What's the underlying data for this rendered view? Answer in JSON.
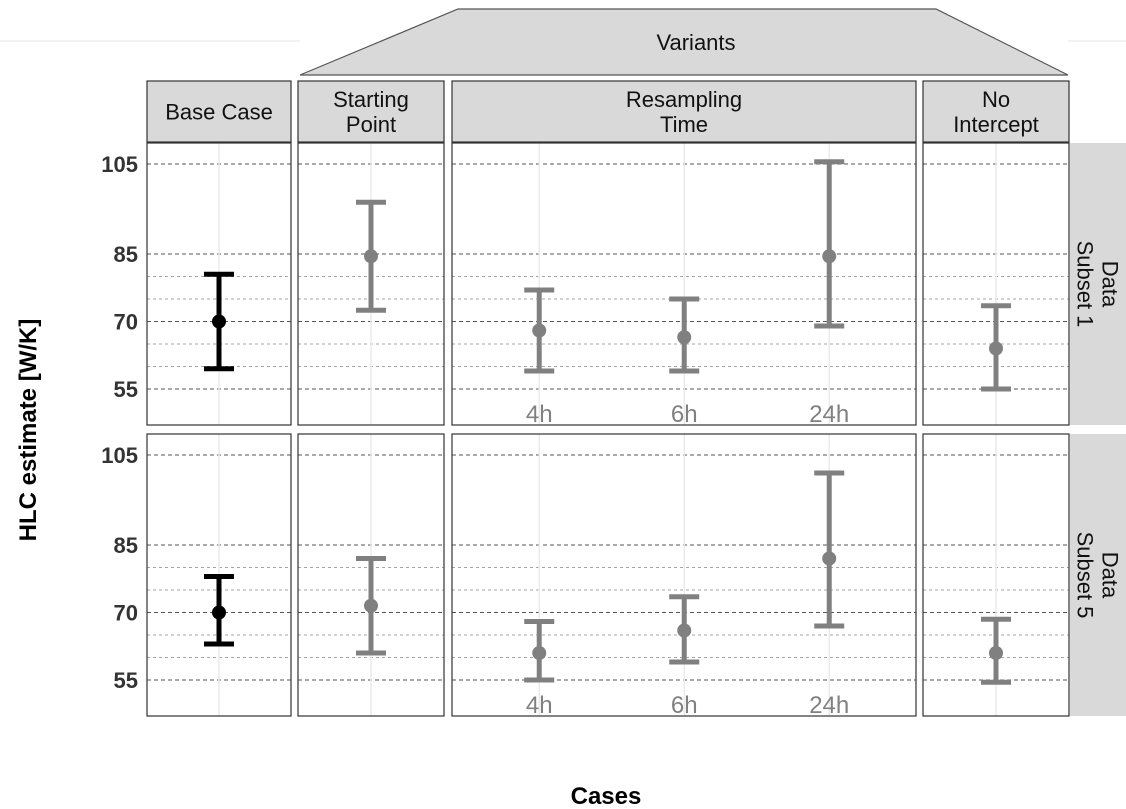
{
  "chart_data": {
    "type": "errorbar",
    "title": "",
    "xlabel": "Cases",
    "ylabel": "HLC estimate [W/K]",
    "y_ticks": [
      55,
      70,
      85,
      105
    ],
    "variants_label": "Variants",
    "columns": [
      {
        "label": "Base Case",
        "label_lines": [
          "Base Case"
        ],
        "points": [
          ""
        ]
      },
      {
        "label": "Starting Point",
        "label_lines": [
          "Starting",
          "Point"
        ],
        "points": [
          ""
        ]
      },
      {
        "label": "Resampling Time",
        "label_lines": [
          "Resampling",
          "Time"
        ],
        "points": [
          "4h",
          "6h",
          "24h"
        ]
      },
      {
        "label": "No Intercept",
        "label_lines": [
          "No",
          "Intercept"
        ],
        "points": [
          ""
        ]
      }
    ],
    "rows": [
      {
        "label": "Data Subset 1",
        "label_lines": [
          "Data",
          "Subset 1"
        ],
        "values": [
          [
            {
              "est": 70,
              "lo": 59.5,
              "hi": 80.5
            }
          ],
          [
            {
              "est": 84.5,
              "lo": 72.5,
              "hi": 96.5
            }
          ],
          [
            {
              "est": 68,
              "lo": 59,
              "hi": 77
            },
            {
              "est": 66.5,
              "lo": 59,
              "hi": 75
            },
            {
              "est": 84.5,
              "lo": 69,
              "hi": 105.5
            }
          ],
          [
            {
              "est": 64,
              "lo": 55,
              "hi": 73.5
            }
          ]
        ]
      },
      {
        "label": "Data Subset 5",
        "label_lines": [
          "Data",
          "Subset 5"
        ],
        "values": [
          [
            {
              "est": 70,
              "lo": 63,
              "hi": 78
            }
          ],
          [
            {
              "est": 71.5,
              "lo": 61,
              "hi": 82
            }
          ],
          [
            {
              "est": 61,
              "lo": 55,
              "hi": 68
            },
            {
              "est": 66,
              "lo": 59,
              "hi": 73.5
            },
            {
              "est": 82,
              "lo": 67,
              "hi": 101
            }
          ],
          [
            {
              "est": 61,
              "lo": 54.5,
              "hi": 68.5
            }
          ]
        ]
      }
    ],
    "colors": {
      "base": "#000000",
      "variant": "#808080",
      "strip_fill": "#d9d9d9",
      "grid": "#555555",
      "minor_grid": "#888888"
    }
  }
}
